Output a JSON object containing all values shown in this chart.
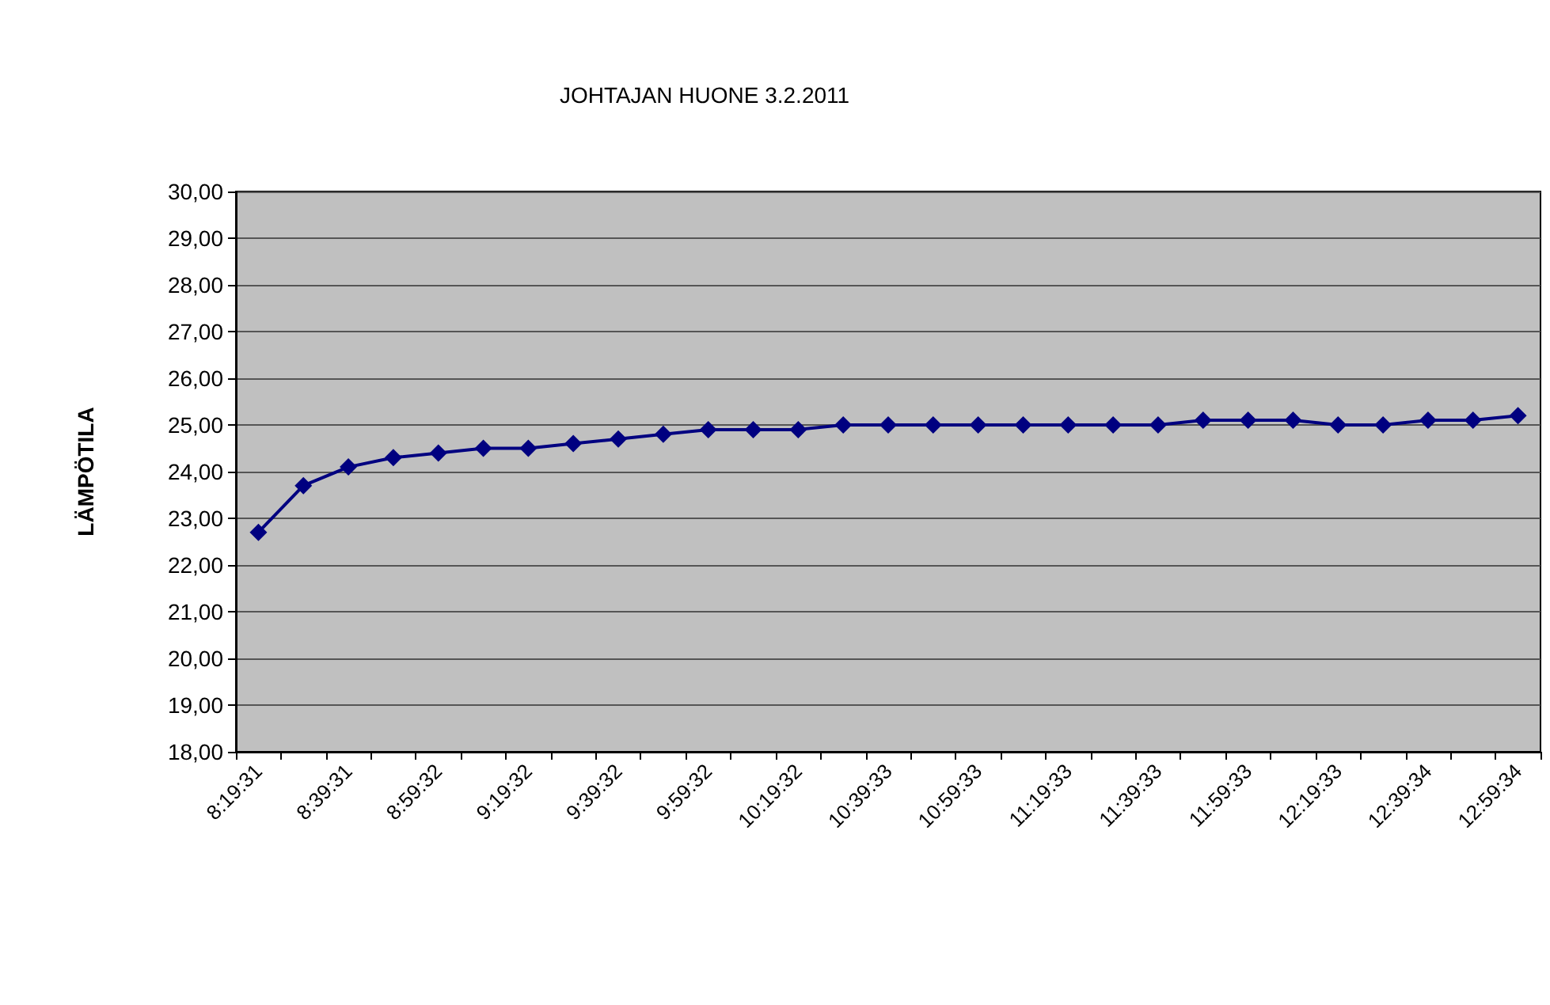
{
  "chart_data": {
    "type": "line",
    "title": "JOHTAJAN HUONE 3.2.2011",
    "ylabel": "LÄMPÖTILA",
    "categories": [
      "8:19:31",
      null,
      "8:39:31",
      null,
      "8:59:32",
      null,
      "9:19:32",
      null,
      "9:39:32",
      null,
      "9:59:32",
      null,
      "10:19:32",
      null,
      "10:39:33",
      null,
      "10:59:33",
      null,
      "11:19:33",
      null,
      "11:39:33",
      null,
      "11:59:33",
      null,
      "12:19:33",
      null,
      "12:39:34",
      null,
      "12:59:34"
    ],
    "series": [
      {
        "color": "#000080",
        "values": [
          22.7,
          23.7,
          24.1,
          24.3,
          24.4,
          24.5,
          24.5,
          24.6,
          24.7,
          24.8,
          24.9,
          24.9,
          24.9,
          25.0,
          25.0,
          25.0,
          25.0,
          25.0,
          25.0,
          25.0,
          25.0,
          25.1,
          25.1,
          25.1,
          25.0,
          25.0,
          25.1,
          25.1,
          25.2
        ]
      }
    ],
    "ylim": [
      18,
      30
    ],
    "yticks": [
      {
        "value": 18,
        "label": "18,00"
      },
      {
        "value": 19,
        "label": "19,00"
      },
      {
        "value": 20,
        "label": "20,00"
      },
      {
        "value": 21,
        "label": "21,00"
      },
      {
        "value": 22,
        "label": "22,00"
      },
      {
        "value": 23,
        "label": "23,00"
      },
      {
        "value": 24,
        "label": "24,00"
      },
      {
        "value": 25,
        "label": "25,00"
      },
      {
        "value": 26,
        "label": "26,00"
      },
      {
        "value": 27,
        "label": "27,00"
      },
      {
        "value": 28,
        "label": "28,00"
      },
      {
        "value": 29,
        "label": "29,00"
      },
      {
        "value": 30,
        "label": "30,00"
      }
    ],
    "grid": "y",
    "marker": "diamond",
    "line_style": "solid"
  }
}
